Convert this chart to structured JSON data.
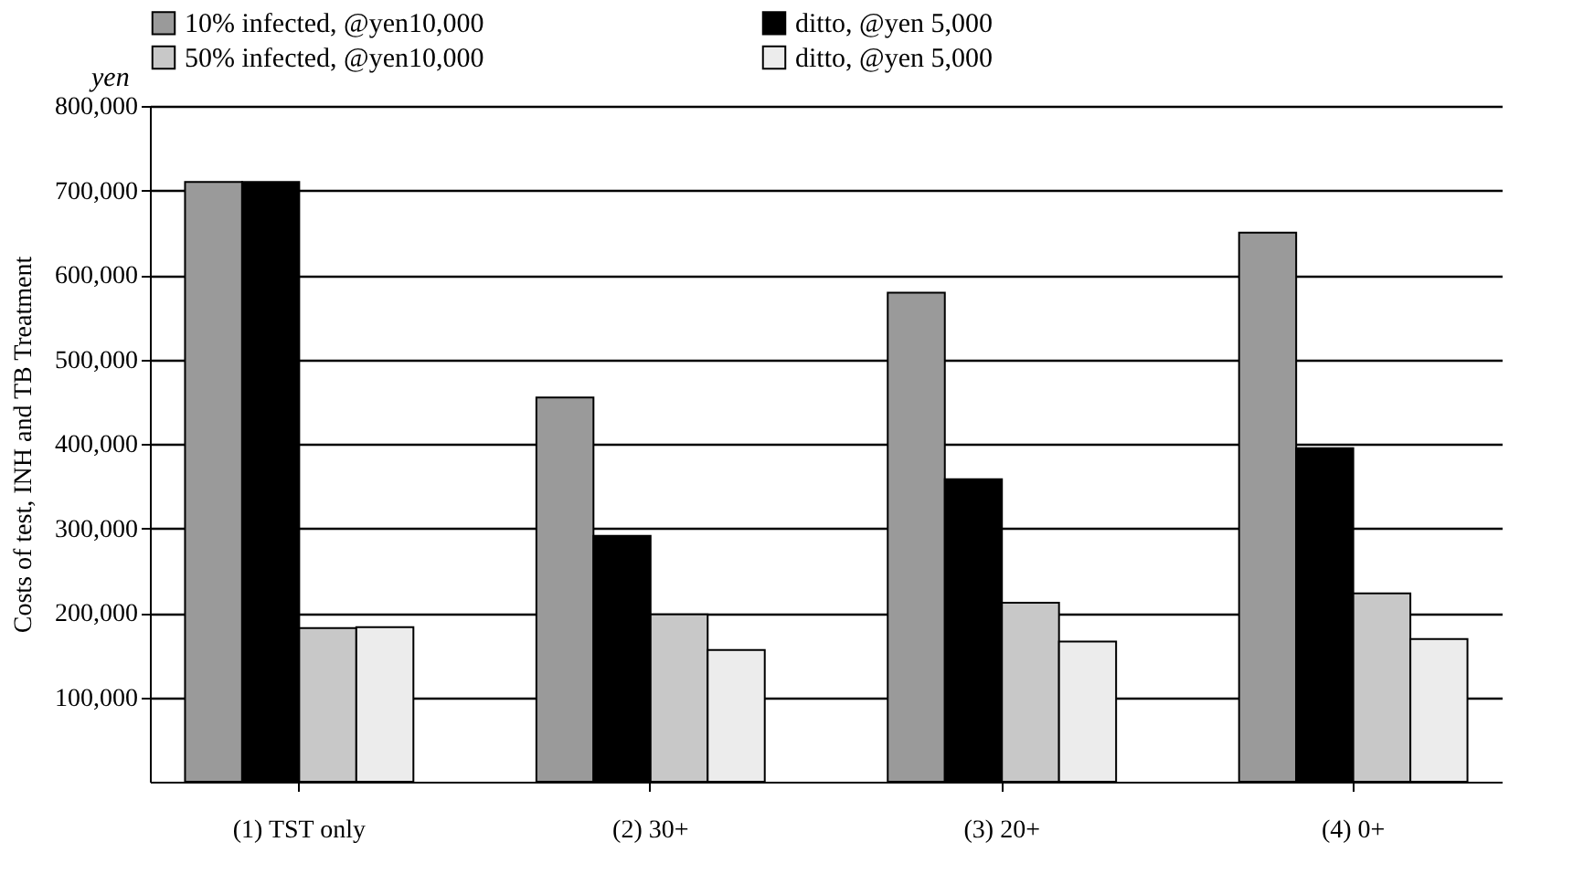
{
  "chart_data": {
    "type": "bar",
    "ylabel": "Costs of test, INH and TB Treatment",
    "annotations": [
      "yen"
    ],
    "categories": [
      "(1) TST only",
      "(2) 30+",
      "(3) 20+",
      "(4) 0+"
    ],
    "series": [
      {
        "name": "10% infected, @yen10,000",
        "color": "#9a9a9a",
        "values": [
          710000,
          455000,
          579000,
          650000
        ]
      },
      {
        "name": "ditto, @yen 5,000",
        "color": "#000000",
        "values": [
          710000,
          291000,
          358000,
          395000
        ]
      },
      {
        "name": "50% infected, @yen10,000",
        "color": "#c8c8c8",
        "values": [
          182000,
          198000,
          212000,
          223000
        ]
      },
      {
        "name": "ditto, @yen 5,000",
        "color": "#ececec",
        "values": [
          183000,
          156000,
          166000,
          169000
        ]
      }
    ],
    "ylim": [
      0,
      800000
    ],
    "yticks": [
      {
        "value": 100000,
        "label": "100,000"
      },
      {
        "value": 200000,
        "label": "200,000"
      },
      {
        "value": 300000,
        "label": "300,000"
      },
      {
        "value": 400000,
        "label": "400,000"
      },
      {
        "value": 500000,
        "label": "500,000"
      },
      {
        "value": 600000,
        "label": "600,000"
      },
      {
        "value": 700000,
        "label": "700,000"
      },
      {
        "value": 800000,
        "label": "800,000"
      }
    ],
    "grid": "y",
    "legend": "top"
  }
}
